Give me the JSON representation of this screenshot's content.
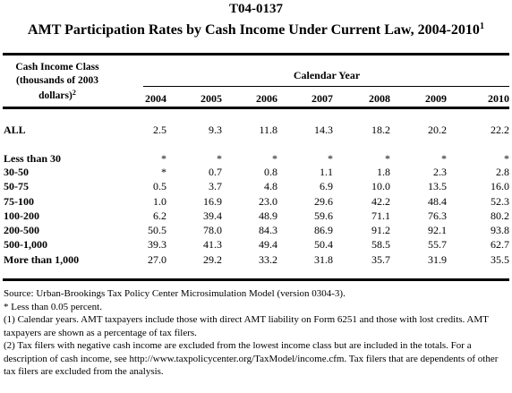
{
  "table_id": "T04-0137",
  "title": "AMT Participation Rates by Cash Income Under Current Law, 2004-2010",
  "title_note": "1",
  "class_header": {
    "line1": "Cash Income Class",
    "line2": "(thousands of 2003",
    "line3": "dollars)",
    "note": "2"
  },
  "group_header": "Calendar Year",
  "years": [
    "2004",
    "2005",
    "2006",
    "2007",
    "2008",
    "2009",
    "2010"
  ],
  "rows": [
    {
      "label": "ALL",
      "values": [
        "2.5",
        "9.3",
        "11.8",
        "14.3",
        "18.2",
        "20.2",
        "22.2"
      ]
    },
    {
      "label": "Less than 30",
      "values": [
        "*",
        "*",
        "*",
        "*",
        "*",
        "*",
        "*"
      ]
    },
    {
      "label": "30-50",
      "values": [
        "*",
        "0.7",
        "0.8",
        "1.1",
        "1.8",
        "2.3",
        "2.8"
      ]
    },
    {
      "label": "50-75",
      "values": [
        "0.5",
        "3.7",
        "4.8",
        "6.9",
        "10.0",
        "13.5",
        "16.0"
      ]
    },
    {
      "label": "75-100",
      "values": [
        "1.0",
        "16.9",
        "23.0",
        "29.6",
        "42.2",
        "48.4",
        "52.3"
      ]
    },
    {
      "label": "100-200",
      "values": [
        "6.2",
        "39.4",
        "48.9",
        "59.6",
        "71.1",
        "76.3",
        "80.2"
      ]
    },
    {
      "label": "200-500",
      "values": [
        "50.5",
        "78.0",
        "84.3",
        "86.9",
        "91.2",
        "92.1",
        "93.8"
      ]
    },
    {
      "label": "500-1,000",
      "values": [
        "39.3",
        "41.3",
        "49.4",
        "50.4",
        "58.5",
        "55.7",
        "62.7"
      ]
    },
    {
      "label": "More than 1,000",
      "values": [
        "27.0",
        "29.2",
        "33.2",
        "31.8",
        "35.7",
        "31.9",
        "35.5"
      ]
    }
  ],
  "notes": {
    "source": "Source: Urban-Brookings Tax Policy Center Microsimulation Model (version 0304-3).",
    "star": "* Less than 0.05 percent.",
    "note1": "(1) Calendar years.  AMT taxpayers include those with direct AMT liability on Form 6251 and those with lost credits.  AMT taxpayers are shown as a percentage of tax filers.",
    "note2": "(2) Tax filers with negative cash income are excluded from the lowest income class but are included in the totals.  For a description of cash income, see http://www.taxpolicycenter.org/TaxModel/income.cfm. Tax filers that are dependents of other tax filers are excluded from the analysis."
  }
}
